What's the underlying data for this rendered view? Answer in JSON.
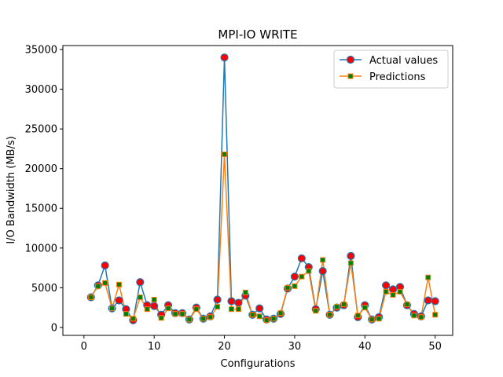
{
  "chart_data": {
    "type": "line",
    "title": "MPI-IO WRITE",
    "xlabel": "Configurations",
    "ylabel": "I/O Bandwidth (MB/s)",
    "xlim": [
      -3,
      52.5
    ],
    "ylim": [
      -1000,
      35500
    ],
    "xticks": [
      0,
      10,
      20,
      30,
      40,
      50
    ],
    "yticks": [
      0,
      5000,
      10000,
      15000,
      20000,
      25000,
      30000,
      35000
    ],
    "legend_position": "top-right",
    "grid": false,
    "colors": {
      "actual_line": "#1f77b4",
      "actual_marker_face": "#ff0000",
      "actual_marker_edge": "#1f77b4",
      "pred_line": "#ff7f0e",
      "pred_marker_face": "#008000",
      "pred_marker_edge": "#ff7f0e"
    },
    "x": [
      1,
      2,
      3,
      4,
      5,
      6,
      7,
      8,
      9,
      10,
      11,
      12,
      13,
      14,
      15,
      16,
      17,
      18,
      19,
      20,
      21,
      22,
      23,
      24,
      25,
      26,
      27,
      28,
      29,
      30,
      31,
      32,
      33,
      34,
      35,
      36,
      37,
      38,
      39,
      40,
      41,
      42,
      43,
      44,
      45,
      46,
      47,
      48,
      49,
      50
    ],
    "series": [
      {
        "name": "Actual values",
        "values": [
          3800,
          5300,
          7800,
          2400,
          3400,
          2300,
          900,
          5700,
          2800,
          2700,
          1600,
          2800,
          1800,
          1800,
          1000,
          2500,
          1100,
          1400,
          3500,
          34000,
          3300,
          3100,
          4000,
          1600,
          2400,
          1000,
          1100,
          1700,
          4900,
          6400,
          8700,
          7600,
          2300,
          7100,
          1600,
          2500,
          2800,
          9000,
          1300,
          2800,
          1000,
          1300,
          5300,
          4800,
          5100,
          2800,
          1700,
          1400,
          3400,
          3300
        ]
      },
      {
        "name": "Predictions",
        "values": [
          3800,
          5200,
          5600,
          2400,
          5400,
          1700,
          1100,
          3800,
          2300,
          3500,
          1200,
          2400,
          1700,
          1700,
          1000,
          2300,
          1100,
          1300,
          2600,
          21800,
          2300,
          2300,
          4400,
          1600,
          1400,
          900,
          1100,
          1800,
          5000,
          5200,
          6400,
          7100,
          2100,
          8500,
          1600,
          2600,
          2900,
          8100,
          1500,
          2500,
          1000,
          1100,
          4500,
          4100,
          4500,
          2900,
          1500,
          1300,
          6300,
          1600
        ]
      }
    ]
  }
}
